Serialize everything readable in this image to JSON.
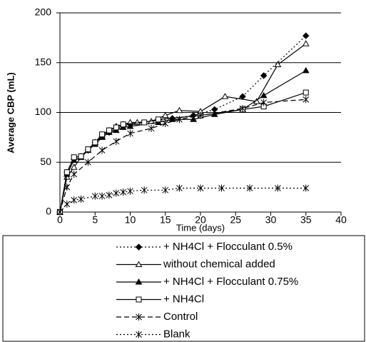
{
  "chart_data": {
    "type": "line",
    "x_label": "Time (days)",
    "y_label": "Average CBP (mL)",
    "xlim": [
      0,
      40
    ],
    "xticks": [
      0,
      5,
      10,
      15,
      20,
      25,
      30,
      35,
      40
    ],
    "ylim": [
      0,
      200
    ],
    "yticks": [
      0,
      50,
      100,
      150,
      200
    ],
    "grid": true,
    "series": [
      {
        "name": "+ NH4Cl + Flocculant 0.5%",
        "color": "#000000",
        "marker": "diamond-filled",
        "line_style": "dotted",
        "x": [
          0,
          1,
          2,
          3,
          4,
          5,
          6,
          7,
          8,
          9,
          10,
          14,
          16,
          19,
          22,
          26,
          29,
          35
        ],
        "values": [
          0,
          40,
          53,
          56,
          62,
          70,
          76,
          80,
          84,
          86,
          88,
          92,
          94,
          97,
          103,
          116,
          137,
          177
        ]
      },
      {
        "name": "without chemical added",
        "color": "#000000",
        "marker": "triangle-open",
        "line_style": "solid",
        "x": [
          0,
          1,
          2,
          3,
          4,
          5,
          6,
          7,
          8,
          9,
          10,
          11,
          13,
          15,
          17,
          20,
          23.5,
          28,
          31,
          35
        ],
        "values": [
          0,
          35,
          45,
          55,
          62,
          70,
          76,
          82,
          86,
          88,
          90,
          90,
          91,
          97,
          102,
          101,
          116,
          111,
          148,
          169
        ]
      },
      {
        "name": "+ NH4Cl + Flocculant 0.75%",
        "color": "#000000",
        "marker": "triangle-filled",
        "line_style": "solid",
        "x": [
          0,
          1,
          2,
          3,
          4,
          5,
          6,
          7,
          8,
          9,
          10,
          14,
          16,
          19,
          22,
          26,
          29,
          35
        ],
        "values": [
          0,
          38,
          52,
          55,
          62,
          68,
          75,
          80,
          82,
          85,
          86,
          90,
          93,
          93,
          98,
          103,
          117,
          142
        ]
      },
      {
        "name": "+ NH4Cl",
        "color": "#000000",
        "marker": "square-open",
        "line_style": "solid",
        "x": [
          0,
          1,
          2,
          3,
          4,
          5,
          6,
          7,
          8,
          9,
          12,
          14,
          20,
          26,
          29,
          35
        ],
        "values": [
          0,
          40,
          55,
          56,
          63,
          70,
          78,
          82,
          85,
          88,
          90,
          93,
          97,
          103,
          106,
          120
        ]
      },
      {
        "name": "Control",
        "color": "#000000",
        "marker": "star",
        "line_style": "dashed",
        "x": [
          0,
          1,
          2,
          4,
          6,
          8,
          10,
          13,
          15,
          17,
          20,
          26,
          29,
          35
        ],
        "values": [
          0,
          25,
          38,
          50,
          62,
          71,
          79,
          84,
          89,
          93,
          97,
          104,
          110,
          113
        ]
      },
      {
        "name": "Blank",
        "color": "#000000",
        "marker": "star",
        "line_style": "dotted",
        "x": [
          0,
          1,
          2,
          3,
          5,
          6,
          7,
          8,
          9,
          10,
          12,
          15,
          17,
          20,
          23,
          27,
          31,
          35
        ],
        "values": [
          0,
          8,
          12,
          13,
          16,
          16,
          17,
          19,
          20,
          21,
          22,
          22,
          24,
          24,
          24,
          24,
          24,
          24
        ]
      }
    ]
  }
}
